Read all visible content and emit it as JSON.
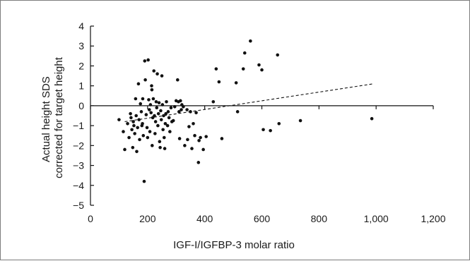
{
  "chart_data": {
    "type": "scatter",
    "xlabel": "IGF-I/IGFBP-3 molar ratio",
    "ylabel": [
      "Actual height SDS",
      "corrected for target height"
    ],
    "xlim": [
      0,
      1200
    ],
    "ylim": [
      -5,
      4
    ],
    "x_ticks": [
      0,
      200,
      400,
      600,
      800,
      1000,
      1200
    ],
    "x_tick_labels": [
      "0",
      "200",
      "400",
      "600",
      "800",
      "1,000",
      "1,200"
    ],
    "y_ticks": [
      4,
      3,
      2,
      1,
      0,
      -1,
      -2,
      -3,
      -4,
      -5
    ],
    "y_tick_labels": [
      "4",
      "3",
      "2",
      "1",
      "0",
      "−1",
      "−2",
      "−3",
      "−4",
      "−5"
    ],
    "grid": false,
    "legend": "none",
    "colors": {
      "points": "#111111",
      "axes": "#111111",
      "trend": "#111111"
    },
    "trend_line": {
      "style": "dashed",
      "points": [
        [
          120,
          -0.8
        ],
        [
          990,
          1.1
        ]
      ]
    },
    "points": [
      [
        100,
        -0.7
      ],
      [
        115,
        -1.3
      ],
      [
        120,
        -2.2
      ],
      [
        130,
        -0.9
      ],
      [
        135,
        -1.6
      ],
      [
        140,
        -0.4
      ],
      [
        142,
        -0.6
      ],
      [
        145,
        -1.2
      ],
      [
        148,
        -2.1
      ],
      [
        150,
        -0.8
      ],
      [
        152,
        -1.0
      ],
      [
        155,
        -1.4
      ],
      [
        158,
        0.35
      ],
      [
        160,
        -0.5
      ],
      [
        162,
        -2.3
      ],
      [
        165,
        -1.1
      ],
      [
        168,
        1.1
      ],
      [
        170,
        -0.7
      ],
      [
        172,
        -1.7
      ],
      [
        175,
        0.1
      ],
      [
        178,
        -0.3
      ],
      [
        180,
        -1.0
      ],
      [
        182,
        -0.9
      ],
      [
        183,
        0.35
      ],
      [
        185,
        -1.5
      ],
      [
        188,
        -3.8
      ],
      [
        190,
        2.25
      ],
      [
        192,
        1.3
      ],
      [
        195,
        -0.45
      ],
      [
        198,
        -1.1
      ],
      [
        200,
        -1.6
      ],
      [
        202,
        2.3
      ],
      [
        204,
        0.3
      ],
      [
        206,
        -0.2
      ],
      [
        208,
        -1.3
      ],
      [
        210,
        0.05
      ],
      [
        212,
        -0.35
      ],
      [
        214,
        1.0
      ],
      [
        215,
        0.8
      ],
      [
        216,
        -2.0
      ],
      [
        218,
        -0.6
      ],
      [
        220,
        0.35
      ],
      [
        222,
        1.75
      ],
      [
        224,
        -0.5
      ],
      [
        226,
        -1.4
      ],
      [
        228,
        -0.8
      ],
      [
        230,
        0.2
      ],
      [
        232,
        -0.1
      ],
      [
        234,
        1.6
      ],
      [
        236,
        -1.0
      ],
      [
        238,
        -0.4
      ],
      [
        240,
        0.15
      ],
      [
        242,
        -1.8
      ],
      [
        244,
        -2.1
      ],
      [
        246,
        -0.25
      ],
      [
        248,
        -0.7
      ],
      [
        250,
        1.5
      ],
      [
        252,
        0.05
      ],
      [
        254,
        -1.2
      ],
      [
        256,
        -0.5
      ],
      [
        258,
        -1.6
      ],
      [
        260,
        -2.15
      ],
      [
        262,
        -0.9
      ],
      [
        264,
        -0.4
      ],
      [
        266,
        0.2
      ],
      [
        270,
        -1.0
      ],
      [
        272,
        -0.3
      ],
      [
        275,
        -0.6
      ],
      [
        278,
        -1.3
      ],
      [
        282,
        -0.1
      ],
      [
        285,
        -0.8
      ],
      [
        290,
        -0.75
      ],
      [
        295,
        -0.05
      ],
      [
        300,
        0.25
      ],
      [
        305,
        1.3
      ],
      [
        308,
        0.2
      ],
      [
        310,
        -0.3
      ],
      [
        312,
        -1.65
      ],
      [
        315,
        0.25
      ],
      [
        318,
        -0.2
      ],
      [
        320,
        0.05
      ],
      [
        325,
        -0.05
      ],
      [
        330,
        -2.0
      ],
      [
        338,
        -0.2
      ],
      [
        340,
        -1.7
      ],
      [
        345,
        -1.05
      ],
      [
        350,
        -0.3
      ],
      [
        355,
        -2.15
      ],
      [
        360,
        -0.9
      ],
      [
        365,
        -1.5
      ],
      [
        370,
        -0.35
      ],
      [
        378,
        -2.85
      ],
      [
        380,
        -1.75
      ],
      [
        385,
        -1.6
      ],
      [
        395,
        -2.2
      ],
      [
        405,
        -1.55
      ],
      [
        430,
        0.2
      ],
      [
        440,
        1.85
      ],
      [
        450,
        1.2
      ],
      [
        460,
        -1.65
      ],
      [
        510,
        1.15
      ],
      [
        515,
        -0.3
      ],
      [
        535,
        1.85
      ],
      [
        540,
        2.65
      ],
      [
        560,
        3.25
      ],
      [
        590,
        2.05
      ],
      [
        600,
        1.8
      ],
      [
        605,
        -1.2
      ],
      [
        630,
        -1.25
      ],
      [
        655,
        2.55
      ],
      [
        660,
        -0.9
      ],
      [
        735,
        -0.75
      ],
      [
        985,
        -0.65
      ]
    ]
  }
}
